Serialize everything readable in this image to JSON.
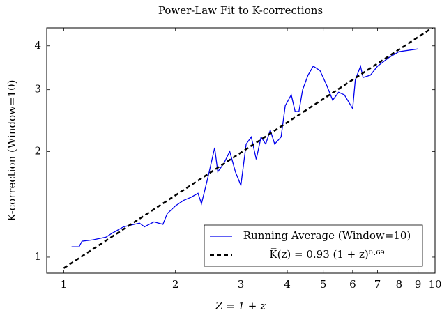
{
  "chart_data": {
    "type": "line",
    "title": "Power-Law Fit to K-corrections",
    "xlabel": "Z = 1 + z",
    "ylabel": "K-correction (Window=10)",
    "xscale": "log",
    "yscale": "log",
    "xlim": [
      0.9,
      10
    ],
    "ylim": [
      0.9,
      4.5
    ],
    "xticks": [
      1,
      2,
      3,
      4,
      5,
      6,
      7,
      8,
      9,
      10
    ],
    "yticks": [
      1,
      2,
      3,
      4
    ],
    "legend": "lower right",
    "series": [
      {
        "name": "Running Average (Window=10)",
        "color": "#0000ee",
        "dash": false,
        "x": [
          1.05,
          1.1,
          1.12,
          1.2,
          1.3,
          1.35,
          1.45,
          1.55,
          1.6,
          1.65,
          1.75,
          1.85,
          1.9,
          2.0,
          2.1,
          2.2,
          2.3,
          2.35,
          2.45,
          2.55,
          2.6,
          2.7,
          2.8,
          2.9,
          3.0,
          3.1,
          3.2,
          3.3,
          3.4,
          3.5,
          3.6,
          3.7,
          3.85,
          3.95,
          4.1,
          4.2,
          4.3,
          4.4,
          4.55,
          4.7,
          4.9,
          5.1,
          5.3,
          5.5,
          5.7,
          6.0,
          6.1,
          6.3,
          6.4,
          6.7,
          7.0,
          7.5,
          8.0,
          9.0
        ],
        "values": [
          1.07,
          1.07,
          1.11,
          1.12,
          1.14,
          1.17,
          1.22,
          1.24,
          1.25,
          1.22,
          1.26,
          1.24,
          1.33,
          1.4,
          1.45,
          1.48,
          1.52,
          1.42,
          1.7,
          2.05,
          1.75,
          1.85,
          2.0,
          1.75,
          1.6,
          2.1,
          2.2,
          1.9,
          2.2,
          2.1,
          2.3,
          2.1,
          2.2,
          2.7,
          2.9,
          2.6,
          2.6,
          3.0,
          3.3,
          3.5,
          3.4,
          3.1,
          2.8,
          2.95,
          2.9,
          2.65,
          3.2,
          3.5,
          3.25,
          3.3,
          3.5,
          3.7,
          3.85,
          3.92
        ]
      },
      {
        "name": "K̅(z) = 0.93 (1 + z)⁰·⁶⁹",
        "color": "#000000",
        "dash": true,
        "x": [
          1,
          10
        ],
        "values": [
          0.93,
          4.555
        ]
      }
    ]
  }
}
